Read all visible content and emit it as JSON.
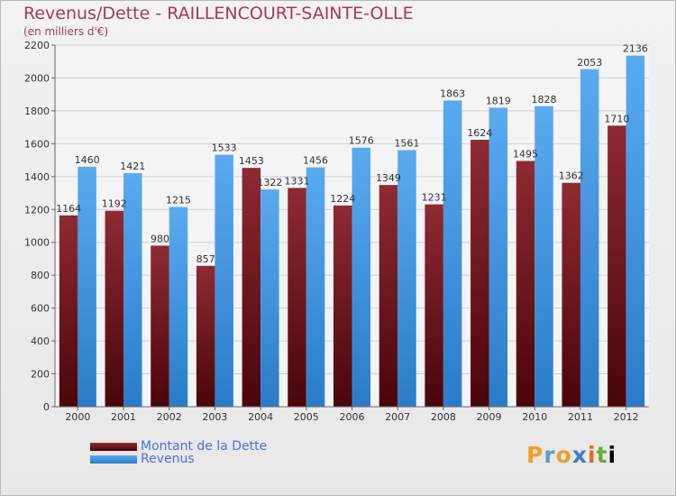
{
  "chart_data": {
    "type": "bar",
    "title": "Revenus/Dette - RAILLENCOURT-SAINTE-OLLE",
    "subtitle": "(en milliers d'€)",
    "xlabel": "",
    "ylabel": "",
    "ylim": [
      0,
      2200
    ],
    "yticks": [
      0,
      200,
      400,
      600,
      800,
      1000,
      1200,
      1400,
      1600,
      1800,
      2000,
      2200
    ],
    "grid": true,
    "categories": [
      "2000",
      "2001",
      "2002",
      "2003",
      "2004",
      "2005",
      "2006",
      "2007",
      "2008",
      "2009",
      "2010",
      "2011",
      "2012"
    ],
    "series": [
      {
        "name": "Montant de la Dette",
        "color": "#7a1a22",
        "values": [
          1164,
          1192,
          980,
          857,
          1453,
          1331,
          1224,
          1349,
          1231,
          1624,
          1495,
          1362,
          1710
        ]
      },
      {
        "name": "Revenus",
        "color": "#3b91de",
        "values": [
          1460,
          1421,
          1215,
          1533,
          1322,
          1456,
          1576,
          1561,
          1863,
          1819,
          1828,
          2053,
          2136
        ]
      }
    ],
    "legend_position": "bottom-left"
  },
  "logo": {
    "letters": [
      "P",
      "r",
      "o",
      "x",
      "i",
      "t",
      "i"
    ]
  }
}
